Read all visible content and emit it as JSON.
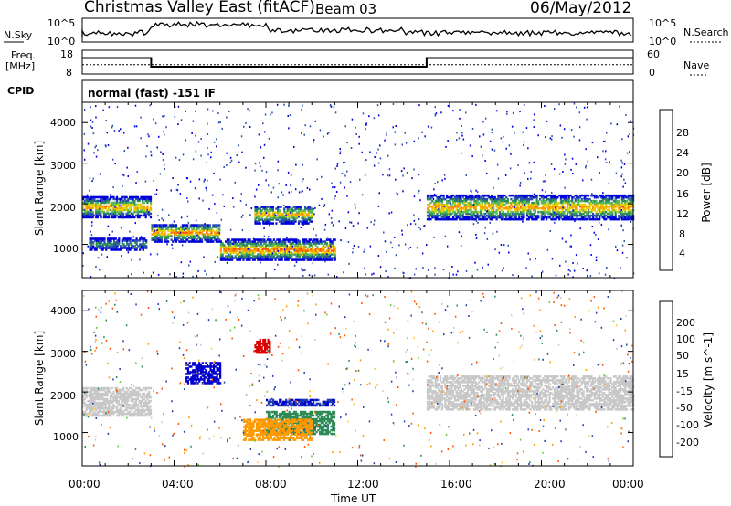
{
  "header": {
    "title": "Christmas Valley East (fitACF)",
    "beam": "Beam 03",
    "date": "06/May/2012"
  },
  "panels": {
    "nsky_label": "N.Sky",
    "nsearch_label": "N.Search",
    "freq_label_1": "Freq.",
    "freq_label_2": "[MHz]",
    "nave_label": "Nave",
    "cpid_label": "CPID",
    "cpid_value": "normal (fast) -151 IF",
    "noise_ticks_left": [
      "10^5",
      "10^0"
    ],
    "noise_ticks_right": [
      "10^5",
      "10^0"
    ],
    "freq_ticks": [
      "18",
      "8"
    ],
    "nave_ticks": [
      "60",
      "0"
    ]
  },
  "colorbars": {
    "power": {
      "label": "Power [dB]",
      "ticks": [
        "28",
        "24",
        "20",
        "16",
        "12",
        "8",
        "4"
      ],
      "colors": [
        "#0000dd",
        "#2a4fb0",
        "#2e8b57",
        "#5cb85c",
        "#e6d200",
        "#ff9900",
        "#ff5500",
        "#dd0000"
      ]
    },
    "velocity": {
      "label": "Velocity [m s^-1]",
      "ticks": [
        "200",
        "100",
        "50",
        "15",
        "-15",
        "-50",
        "-100",
        "-200"
      ],
      "colors": [
        "#0000cc",
        "#1f3fb0",
        "#2e8b57",
        "#66cc33",
        "#c8c8c8",
        "#ffcc33",
        "#ff9900",
        "#ff5500",
        "#dd0000"
      ]
    }
  },
  "chart_data": {
    "type": "heatmap",
    "xlabel": "Time UT",
    "ylabel": "Slant Range [km]",
    "x_ticks": [
      "00:00",
      "04:00",
      "08:00",
      "12:00",
      "16:00",
      "20:00",
      "00:00"
    ],
    "y_ticks": [
      "1000",
      "2000",
      "3000",
      "4000"
    ],
    "xlim_hours": [
      0,
      24
    ],
    "ylim_km": [
      180,
      4500
    ],
    "frequency_mhz": [
      {
        "from_h": 0,
        "to_h": 3,
        "value": 14.6
      },
      {
        "from_h": 3,
        "to_h": 15,
        "value": 10.8
      },
      {
        "from_h": 15,
        "to_h": 24,
        "value": 14.6
      }
    ],
    "nave": 22,
    "noise_sky_log": 1.5,
    "scatter_bands_power": [
      {
        "t0": 0,
        "t1": 3,
        "r0": 1650,
        "r1": 2150,
        "peak_db": 26
      },
      {
        "t0": 0.3,
        "t1": 2.8,
        "r0": 850,
        "r1": 1150,
        "peak_db": 14
      },
      {
        "t0": 3,
        "t1": 6,
        "r0": 1050,
        "r1": 1500,
        "peak_db": 26
      },
      {
        "t0": 6,
        "t1": 11,
        "r0": 600,
        "r1": 1100,
        "peak_db": 28
      },
      {
        "t0": 7.5,
        "t1": 10,
        "r0": 1500,
        "r1": 1950,
        "peak_db": 24
      },
      {
        "t0": 15,
        "t1": 24,
        "r0": 1600,
        "r1": 2200,
        "peak_db": 26
      }
    ],
    "scatter_bands_velocity": [
      {
        "t0": 0,
        "t1": 3,
        "r0": 1400,
        "r1": 2100,
        "v": 0
      },
      {
        "t0": 4.5,
        "t1": 6,
        "r0": 2200,
        "r1": 2700,
        "v": 200
      },
      {
        "t0": 7.5,
        "t1": 8.2,
        "r0": 2950,
        "r1": 3300,
        "v": -200
      },
      {
        "t0": 8,
        "t1": 11,
        "r0": 1650,
        "r1": 1800,
        "v": 150
      },
      {
        "t0": 8,
        "t1": 11,
        "r0": 950,
        "r1": 1500,
        "v": 40
      },
      {
        "t0": 7,
        "t1": 10,
        "r0": 800,
        "r1": 1300,
        "v": -40
      },
      {
        "t0": 15,
        "t1": 24,
        "r0": 1550,
        "r1": 2400,
        "v": 0
      }
    ]
  }
}
